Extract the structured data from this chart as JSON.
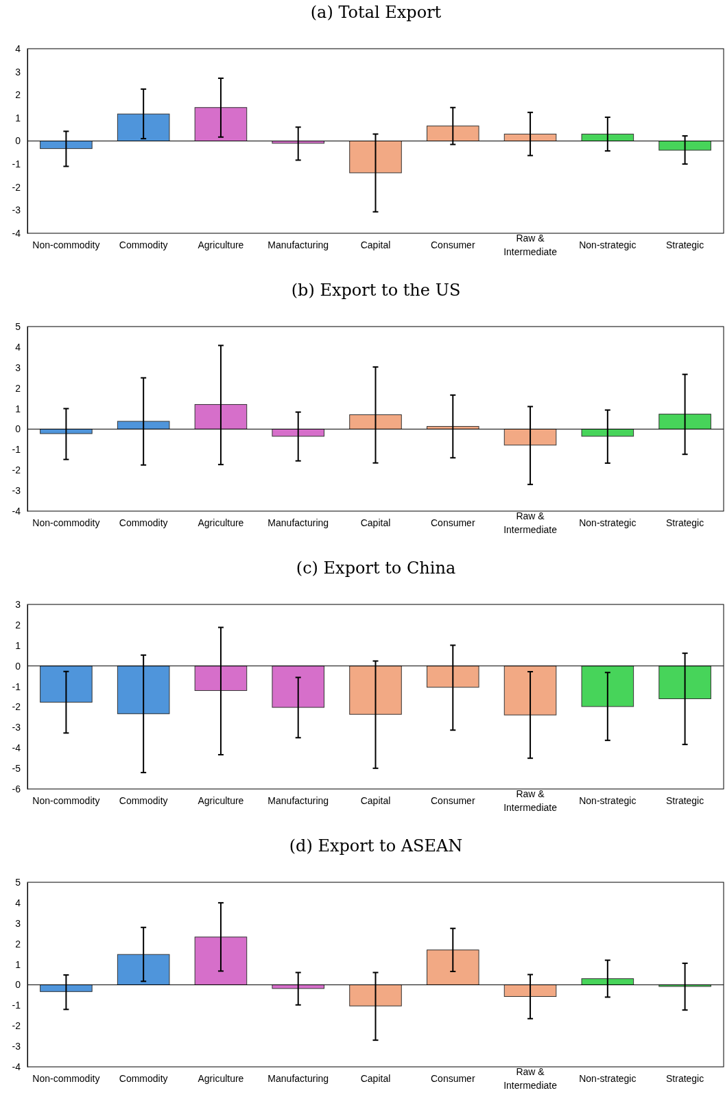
{
  "chart_data": [
    {
      "type": "bar",
      "title": "(a) Total Export",
      "categories": [
        "Non-commodity",
        "Commodity",
        "Agriculture",
        "Manufacturing",
        "Capital",
        "Consumer",
        "Raw & Intermediate",
        "Non-strategic",
        "Strategic"
      ],
      "colors": [
        "#4f95db",
        "#4f95db",
        "#d66fca",
        "#d66fca",
        "#f2a984",
        "#f2a984",
        "#f2a984",
        "#47d45a",
        "#47d45a"
      ],
      "values": [
        -0.33,
        1.17,
        1.45,
        -0.1,
        -1.38,
        0.65,
        0.3,
        0.3,
        -0.4
      ],
      "errors": [
        [
          -1.1,
          0.42
        ],
        [
          0.1,
          2.25
        ],
        [
          0.17,
          2.72
        ],
        [
          -0.83,
          0.6
        ],
        [
          -3.07,
          0.3
        ],
        [
          -0.15,
          1.45
        ],
        [
          -0.63,
          1.24
        ],
        [
          -0.43,
          1.03
        ],
        [
          -1.0,
          0.22
        ]
      ],
      "ylim": [
        -4,
        4
      ],
      "yticks": [
        -4,
        -3,
        -2,
        -1,
        0,
        1,
        2,
        3,
        4
      ]
    },
    {
      "type": "bar",
      "title": "(b) Export to the US",
      "categories": [
        "Non-commodity",
        "Commodity",
        "Agriculture",
        "Manufacturing",
        "Capital",
        "Consumer",
        "Raw & Intermediate",
        "Non-strategic",
        "Strategic"
      ],
      "colors": [
        "#4f95db",
        "#4f95db",
        "#d66fca",
        "#d66fca",
        "#f2a984",
        "#f2a984",
        "#f2a984",
        "#47d45a",
        "#47d45a"
      ],
      "values": [
        -0.22,
        0.38,
        1.2,
        -0.35,
        0.7,
        0.13,
        -0.78,
        -0.35,
        0.73
      ],
      "errors": [
        [
          -1.48,
          1.0
        ],
        [
          -1.75,
          2.5
        ],
        [
          -1.73,
          4.08
        ],
        [
          -1.55,
          0.83
        ],
        [
          -1.65,
          3.03
        ],
        [
          -1.4,
          1.66
        ],
        [
          -2.7,
          1.1
        ],
        [
          -1.66,
          0.93
        ],
        [
          -1.23,
          2.67
        ]
      ],
      "ylim": [
        -4,
        5
      ],
      "yticks": [
        -4,
        -3,
        -2,
        -1,
        0,
        1,
        2,
        3,
        4,
        5
      ]
    },
    {
      "type": "bar",
      "title": "(c) Export to China",
      "categories": [
        "Non-commodity",
        "Commodity",
        "Agriculture",
        "Manufacturing",
        "Capital",
        "Consumer",
        "Raw & Intermediate",
        "Non-strategic",
        "Strategic"
      ],
      "colors": [
        "#4f95db",
        "#4f95db",
        "#d66fca",
        "#d66fca",
        "#f2a984",
        "#f2a984",
        "#f2a984",
        "#47d45a",
        "#47d45a"
      ],
      "values": [
        -1.77,
        -2.33,
        -1.2,
        -2.02,
        -2.36,
        -1.04,
        -2.39,
        -1.98,
        -1.6
      ],
      "errors": [
        [
          -3.27,
          -0.27
        ],
        [
          -5.2,
          0.53
        ],
        [
          -4.33,
          1.88
        ],
        [
          -3.5,
          -0.56
        ],
        [
          -4.99,
          0.24
        ],
        [
          -3.13,
          1.01
        ],
        [
          -4.5,
          -0.28
        ],
        [
          -3.63,
          -0.32
        ],
        [
          -3.83,
          0.62
        ]
      ],
      "ylim": [
        -6,
        3
      ],
      "yticks": [
        -6,
        -5,
        -4,
        -3,
        -2,
        -1,
        0,
        1,
        2,
        3
      ]
    },
    {
      "type": "bar",
      "title": "(d) Export to ASEAN",
      "categories": [
        "Non-commodity",
        "Commodity",
        "Agriculture",
        "Manufacturing",
        "Capital",
        "Consumer",
        "Raw & Intermediate",
        "Non-strategic",
        "Strategic"
      ],
      "colors": [
        "#4f95db",
        "#4f95db",
        "#d66fca",
        "#d66fca",
        "#f2a984",
        "#f2a984",
        "#f2a984",
        "#47d45a",
        "#47d45a"
      ],
      "values": [
        -0.33,
        1.48,
        2.33,
        -0.18,
        -1.03,
        1.7,
        -0.57,
        0.3,
        -0.08
      ],
      "errors": [
        [
          -1.2,
          0.48
        ],
        [
          0.17,
          2.8
        ],
        [
          0.67,
          4.0
        ],
        [
          -0.98,
          0.6
        ],
        [
          -2.7,
          0.6
        ],
        [
          0.65,
          2.75
        ],
        [
          -1.65,
          0.5
        ],
        [
          -0.6,
          1.2
        ],
        [
          -1.23,
          1.05
        ]
      ],
      "ylim": [
        -4,
        5
      ],
      "yticks": [
        -4,
        -3,
        -2,
        -1,
        0,
        1,
        2,
        3,
        4,
        5
      ]
    }
  ]
}
